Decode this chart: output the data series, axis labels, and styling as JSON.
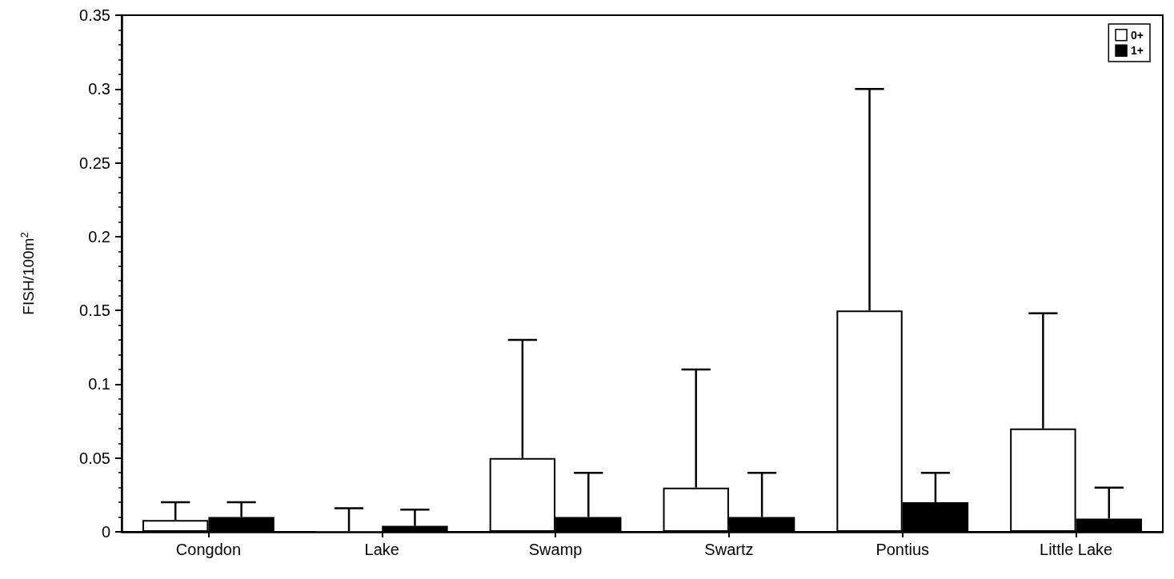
{
  "chart_data": {
    "type": "bar",
    "ylabel": "FISH/100m$^{2}$",
    "categories": [
      "Congdon",
      "Lake",
      "Swamp",
      "Swartz",
      "Pontius",
      "Little Lake"
    ],
    "series": [
      {
        "name": "0+",
        "color": "#ffffff",
        "values": [
          0.008,
          0,
          0.05,
          0.03,
          0.15,
          0.07
        ],
        "errors": [
          [
            0.008,
            0.02
          ],
          [
            0,
            0.016
          ],
          [
            0.05,
            0.13
          ],
          [
            0.03,
            0.11
          ],
          [
            0.15,
            0.3
          ],
          [
            0.07,
            0.148
          ]
        ]
      },
      {
        "name": "1+",
        "color": "#000000",
        "values": [
          0.01,
          0.004,
          0.01,
          0.01,
          0.02,
          0.009
        ],
        "errors": [
          [
            0.01,
            0.02
          ],
          [
            0.004,
            0.015
          ],
          [
            0.01,
            0.04
          ],
          [
            0.01,
            0.04
          ],
          [
            0.02,
            0.04
          ],
          [
            0.009,
            0.03
          ]
        ]
      }
    ],
    "ylim": [
      0,
      0.35
    ],
    "yticks": [
      0,
      0.05,
      0.1,
      0.15,
      0.2,
      0.25,
      0.3,
      0.35
    ],
    "grid": false,
    "legend": "top right"
  }
}
